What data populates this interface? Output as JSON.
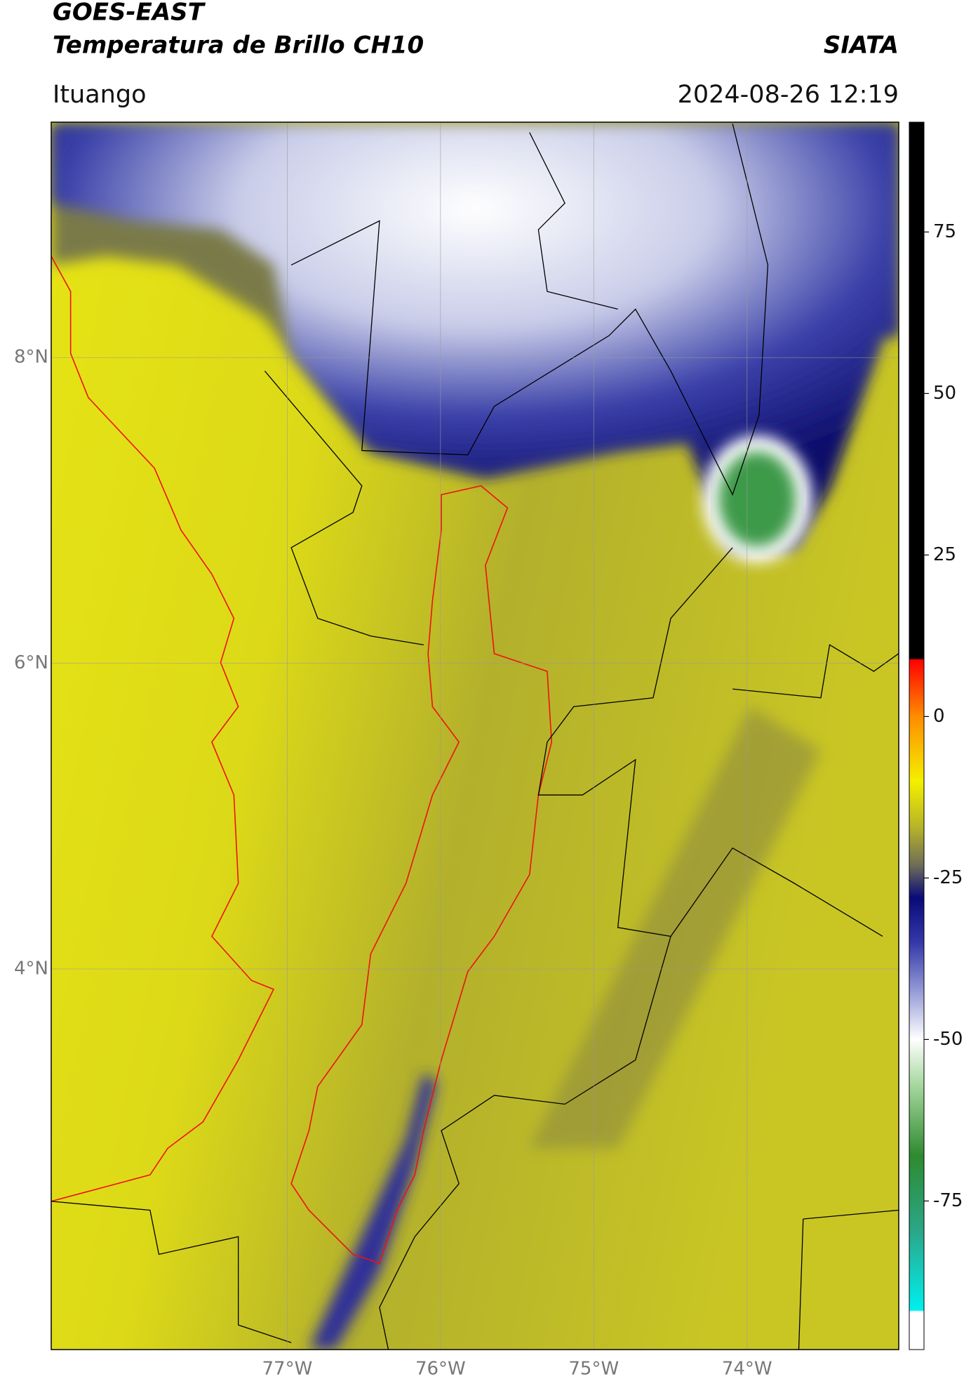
{
  "chart_data": {
    "type": "map",
    "title": "GOES-EAST",
    "subtitle": "Temperatura de Brillo CH10",
    "source": "SIATA",
    "location": "Ituango",
    "datetime": "2024-08-26 12:19",
    "xlim": [
      -78.54,
      -73.01
    ],
    "ylim": [
      1.51,
      9.54
    ],
    "xticks": [
      {
        "value": -77,
        "label": "77°W"
      },
      {
        "value": -76,
        "label": "76°W"
      },
      {
        "value": -75,
        "label": "75°W"
      },
      {
        "value": -74,
        "label": "74°W"
      }
    ],
    "yticks": [
      {
        "value": 8,
        "label": "8°N"
      },
      {
        "value": 6,
        "label": "6°N"
      },
      {
        "value": 4,
        "label": "4°N"
      }
    ],
    "grid": true,
    "colorbar": {
      "lim": [
        -98,
        92
      ],
      "ticks": [
        75,
        50,
        25,
        0,
        -25,
        -50,
        -75
      ]
    }
  }
}
